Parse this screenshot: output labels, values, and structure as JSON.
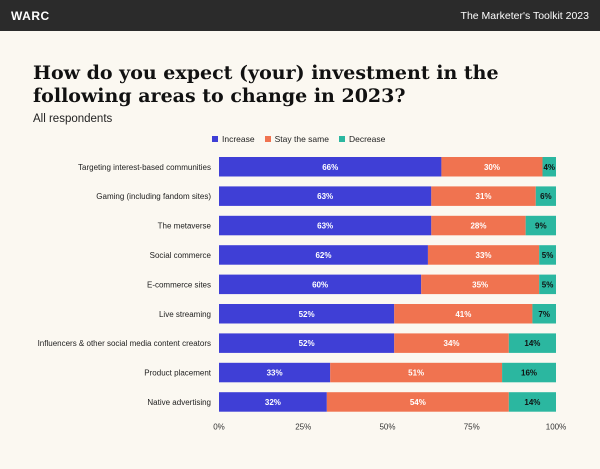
{
  "header": {
    "brand": "WARC",
    "toolkit": "The Marketer's Toolkit 2023"
  },
  "colors": {
    "increase": "#3f3fd6",
    "stay": "#f07350",
    "decrease": "#2bb7a0",
    "header_bg": "#2b2b2b",
    "background": "#fbf8f1"
  },
  "chart_data": {
    "type": "bar",
    "orientation": "horizontal",
    "stacked": true,
    "title": "How do you expect (your) investment in the following areas to change in 2023?",
    "subtitle": "All respondents",
    "categories": [
      "Targeting interest-based communities",
      "Gaming (including fandom sites)",
      "The metaverse",
      "Social commerce",
      "E-commerce sites",
      "Live streaming",
      "Influencers & other social  media content creators",
      "Product placement",
      "Native advertising"
    ],
    "series": [
      {
        "name": "Increase",
        "values": [
          66,
          63,
          63,
          62,
          60,
          52,
          52,
          33,
          32
        ]
      },
      {
        "name": "Stay the same",
        "values": [
          30,
          31,
          28,
          33,
          35,
          41,
          34,
          51,
          54
        ]
      },
      {
        "name": "Decrease",
        "values": [
          4,
          6,
          9,
          5,
          5,
          7,
          14,
          16,
          14
        ]
      }
    ],
    "xlim": [
      0,
      100
    ],
    "xticks": [
      "0%",
      "25%",
      "50%",
      "75%",
      "100%"
    ],
    "xtick_values": [
      0,
      25,
      50,
      75,
      100
    ],
    "value_suffix": "%",
    "legend_position": "top",
    "grid": false
  }
}
